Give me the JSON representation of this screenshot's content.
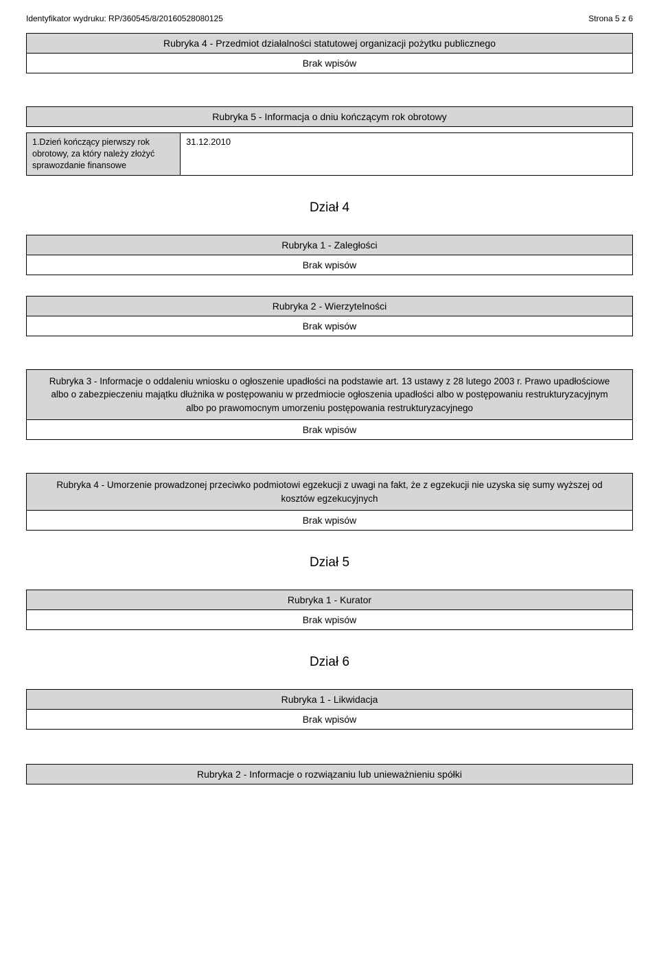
{
  "header": {
    "left": "Identyfikator wydruku: RP/360545/8/20160528080125",
    "right": "Strona 5 z 6"
  },
  "r4": {
    "title": "Rubryka 4 - Przedmiot działalności statutowej organizacji pożytku publicznego",
    "body": "Brak wpisów"
  },
  "r5": {
    "title": "Rubryka 5 - Informacja o dniu kończącym rok obrotowy",
    "field_label": "1.Dzień kończący pierwszy rok obrotowy, za który należy złożyć sprawozdanie finansowe",
    "field_value": "31.12.2010"
  },
  "dzial4": "Dział 4",
  "d4_r1": {
    "title": "Rubryka 1 - Zaległości",
    "body": "Brak wpisów"
  },
  "d4_r2": {
    "title": "Rubryka 2 - Wierzytelności",
    "body": "Brak wpisów"
  },
  "d4_r3": {
    "title": "Rubryka 3 - Informacje o oddaleniu wniosku o ogłoszenie upadłości na podstawie art. 13 ustawy z 28 lutego 2003 r. Prawo upadłościowe albo o zabezpieczeniu majątku dłużnika w postępowaniu w przedmiocie ogłoszenia upadłości albo w postępowaniu restrukturyzacyjnym albo po prawomocnym umorzeniu postępowania restrukturyzacyjnego",
    "body": "Brak wpisów"
  },
  "d4_r4": {
    "title": "Rubryka 4 - Umorzenie prowadzonej przeciwko podmiotowi egzekucji z uwagi na fakt, że z egzekucji nie uzyska się sumy wyższej od kosztów egzekucyjnych",
    "body": "Brak wpisów"
  },
  "dzial5": "Dział 5",
  "d5_r1": {
    "title": "Rubryka 1 - Kurator",
    "body": "Brak wpisów"
  },
  "dzial6": "Dział 6",
  "d6_r1": {
    "title": "Rubryka 1 - Likwidacja",
    "body": "Brak wpisów"
  },
  "d6_r2": {
    "title": "Rubryka 2 - Informacje o rozwiązaniu lub unieważnieniu spółki"
  }
}
